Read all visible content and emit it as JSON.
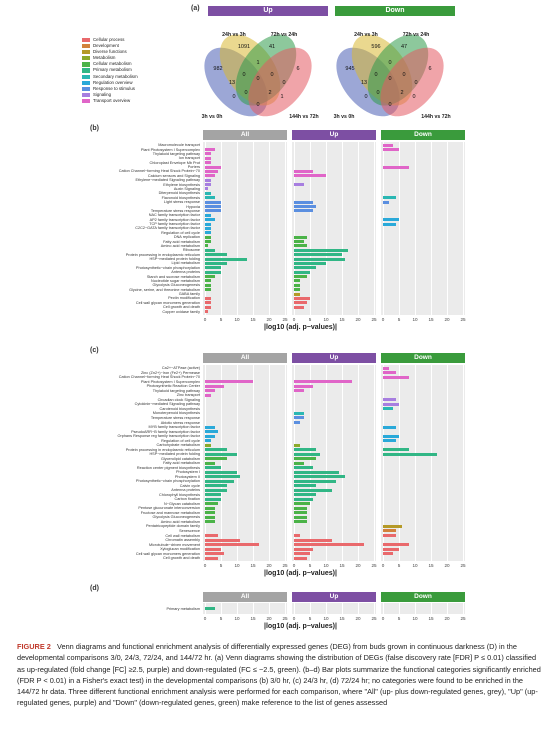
{
  "panels": {
    "a": "(a)",
    "b": "(b)",
    "c": "(c)",
    "d": "(d)"
  },
  "venn": {
    "up": {
      "title": "Up",
      "color": "#7d4fa3",
      "labels": {
        "c24": "24h vs 3h",
        "c72": "72h vs 24h",
        "c3": "3h vs 0h",
        "c144": "144h vs 72h"
      },
      "nums": [
        "1091",
        "41",
        "982",
        "6",
        "13",
        "1",
        "0",
        "0",
        "0",
        "0",
        "0",
        "1",
        "0",
        "2",
        "0"
      ]
    },
    "down": {
      "title": "Down",
      "color": "#3a9b3c",
      "labels": {
        "c24": "24h vs 3h",
        "c72": "72h vs 24h",
        "c3": "3h vs 0h",
        "c144": "144h vs 72h"
      },
      "nums": [
        "596",
        "47",
        "945",
        "6",
        "13",
        "0",
        "0",
        "0",
        "0",
        "0",
        "0",
        "0",
        "0",
        "2",
        "0"
      ]
    }
  },
  "legend": [
    {
      "label": "Cellular process",
      "color": "#e9696c"
    },
    {
      "label": "Development",
      "color": "#d2823c"
    },
    {
      "label": "Diverse functions",
      "color": "#b59a27"
    },
    {
      "label": "Metabolism",
      "color": "#8caa2b"
    },
    {
      "label": "Cellular metabolism",
      "color": "#4bb348"
    },
    {
      "label": "Primary metabolism",
      "color": "#31b685"
    },
    {
      "label": "Secondary metabolism",
      "color": "#2ab7b3"
    },
    {
      "label": "Regulation overview",
      "color": "#2aa9d9"
    },
    {
      "label": "Response to stimulus",
      "color": "#5b8fe0"
    },
    {
      "label": "Signaling",
      "color": "#a77ee0"
    },
    {
      "label": "Transport overview",
      "color": "#e065c8"
    }
  ],
  "facets": {
    "all": "All",
    "up": "Up",
    "down": "Down"
  },
  "facet_colors": {
    "all": "#a4a4a4",
    "up": "#7d4fa3",
    "down": "#3a9b3c"
  },
  "axis": {
    "title": "|log10 (adj. p−values)|",
    "ticks": [
      "0",
      "5",
      "10",
      "15",
      "20",
      "25"
    ]
  },
  "chart_data": [
    {
      "type": "bar",
      "panel": "b",
      "orientation": "horizontal",
      "xlim": [
        0,
        25
      ],
      "categories": [
        "Macromolecule transport",
        "Plant Photosystem I Supercomplex",
        "Thylakoid targeting pathway",
        "Ion transport",
        "Chloroplast Envelope Mb Prot",
        "Porters",
        "Cation Channel−forming Heat Shock Protein−70",
        "Calcium sensors and Signaling",
        "Ethylene−mediated Signaling pathway",
        "Ethylene biosynthesis",
        "Auxin Signaling",
        "Diterpenoid biosynthesis",
        "Flavonoid biosynthesis",
        "Light stress response",
        "Hypoxia",
        "Temperature stress response",
        "NAC family transcription factor",
        "AP2 family transcription factor",
        "TCP family transcription factor",
        "C2C2−GATA family transcription factor",
        "Regulation of cell cycle",
        "DNA replication",
        "Fatty acid metabolism",
        "Amino acid metabolism",
        "Ribosome",
        "Protein processing in endoplasmic reticulum",
        "HSP−mediated protein folding",
        "Lipid metabolism",
        "Photosynthetic−chain phosphorylation",
        "Antenna proteins",
        "Starch and sucrose metabolism",
        "Nucleotide sugar metabolism",
        "Glycolysis Gluconeogenesis",
        "Glycine, serine, and threonine metabolism",
        "GABA family",
        "Pectin modification",
        "Cell wall glycan monomers generation",
        "Cell growth and death",
        "Copper oxidase family"
      ],
      "cat_colors": [
        "#e065c8",
        "#e065c8",
        "#e065c8",
        "#e065c8",
        "#e065c8",
        "#e065c8",
        "#e065c8",
        "#e065c8",
        "#a77ee0",
        "#a77ee0",
        "#a77ee0",
        "#2ab7b3",
        "#2ab7b3",
        "#5b8fe0",
        "#5b8fe0",
        "#5b8fe0",
        "#2aa9d9",
        "#2aa9d9",
        "#2aa9d9",
        "#2aa9d9",
        "#2aa9d9",
        "#4bb348",
        "#4bb348",
        "#4bb348",
        "#31b685",
        "#31b685",
        "#31b685",
        "#31b685",
        "#31b685",
        "#31b685",
        "#4bb348",
        "#4bb348",
        "#4bb348",
        "#4bb348",
        "#b59a27",
        "#e9696c",
        "#e9696c",
        "#e9696c",
        "#e9696c"
      ],
      "series": [
        {
          "name": "All",
          "values": [
            0,
            3,
            2,
            2,
            2,
            5,
            4,
            3,
            2,
            2,
            1,
            2,
            3,
            5,
            5,
            5,
            2,
            3,
            2,
            2,
            2,
            2,
            2,
            1,
            3,
            7,
            13,
            7,
            5,
            5,
            3,
            2,
            2,
            2,
            0,
            2,
            2,
            2,
            1
          ]
        },
        {
          "name": "Up",
          "values": [
            0,
            0,
            0,
            0,
            0,
            0,
            6,
            10,
            0,
            3,
            0,
            0,
            0,
            6,
            7,
            6,
            0,
            0,
            0,
            0,
            0,
            4,
            3,
            4,
            17,
            15,
            16,
            10,
            7,
            5,
            4,
            2,
            2,
            2,
            2,
            5,
            4,
            3,
            0
          ]
        },
        {
          "name": "Down",
          "values": [
            3,
            5,
            0,
            0,
            0,
            8,
            0,
            0,
            0,
            0,
            0,
            0,
            4,
            2,
            0,
            0,
            0,
            5,
            4,
            0,
            0,
            0,
            0,
            0,
            0,
            0,
            0,
            0,
            0,
            0,
            0,
            0,
            0,
            0,
            0,
            0,
            0,
            0,
            0
          ]
        }
      ]
    },
    {
      "type": "bar",
      "panel": "c",
      "orientation": "horizontal",
      "xlim": [
        0,
        25
      ],
      "categories": [
        "Ca2+−ATPase (active)",
        "Zinc (Zn2+)−Iron (Fe2+) Permease",
        "Cation Channel−forming Heat Shock Protein−70",
        "Plant Photosystem I Supercomplex",
        "Photosynthetic Reaction Center",
        "Thylakoid targeting pathway",
        "Zinc transport",
        "Circadian clock Signaling",
        "Cytokinin−mediated Signaling pathway",
        "Carotenoid biosynthesis",
        "Monoterpenoid biosynthesis",
        "Temperature stress response",
        "Abiotic stress response",
        "MYB family transcription factor",
        "PseudoARR−B family transcription factor",
        "Orphans Response reg family transcription factor",
        "Regulation of cell cycle",
        "Carbohydrate metabolism",
        "Protein processing in endoplasmic reticulum",
        "HSP−mediated protein folding",
        "Glycerolipid catabolism",
        "Fatty acid metabolism",
        "Reaction center pigment biosynthesis",
        "Photosystem I",
        "Photosystem II",
        "Photosynthetic−chain phosphorylation",
        "Calvin cycle",
        "Antenna proteins",
        "Chlorophyll biosynthesis",
        "Carbon fixation",
        "N−Glycan catabolism",
        "Pentose glucuronate interconversion",
        "Fructose and mannose metabolism",
        "Glycolysis Gluconeogenesis",
        "Amino acid metabolism",
        "Pentatricopeptide domain family",
        "Senescence",
        "Cell wall metabolism",
        "Chromatin assembly",
        "Microtubule−driven movement",
        "Xyloglucan modification",
        "Cell wall glycan monomers generation",
        "Cell growth and death"
      ],
      "cat_colors": [
        "#e065c8",
        "#e065c8",
        "#e065c8",
        "#e065c8",
        "#e065c8",
        "#e065c8",
        "#e065c8",
        "#a77ee0",
        "#a77ee0",
        "#2ab7b3",
        "#2ab7b3",
        "#5b8fe0",
        "#5b8fe0",
        "#2aa9d9",
        "#2aa9d9",
        "#2aa9d9",
        "#2aa9d9",
        "#8caa2b",
        "#31b685",
        "#31b685",
        "#4bb348",
        "#4bb348",
        "#31b685",
        "#31b685",
        "#31b685",
        "#31b685",
        "#31b685",
        "#31b685",
        "#31b685",
        "#31b685",
        "#4bb348",
        "#4bb348",
        "#4bb348",
        "#4bb348",
        "#4bb348",
        "#b59a27",
        "#d2823c",
        "#e9696c",
        "#e9696c",
        "#e9696c",
        "#e9696c",
        "#e9696c",
        "#e9696c"
      ],
      "series": [
        {
          "name": "All",
          "values": [
            0,
            0,
            0,
            15,
            6,
            3,
            2,
            0,
            0,
            0,
            0,
            0,
            0,
            3,
            4,
            3,
            2,
            2,
            7,
            10,
            7,
            3,
            5,
            10,
            11,
            9,
            7,
            7,
            5,
            5,
            4,
            3,
            3,
            3,
            3,
            0,
            0,
            4,
            11,
            17,
            5,
            6,
            4
          ]
        },
        {
          "name": "Up",
          "values": [
            0,
            0,
            0,
            18,
            6,
            3,
            0,
            0,
            0,
            0,
            3,
            3,
            2,
            0,
            0,
            0,
            0,
            2,
            7,
            8,
            7,
            3,
            6,
            14,
            16,
            13,
            7,
            12,
            7,
            6,
            5,
            4,
            4,
            4,
            4,
            0,
            0,
            2,
            12,
            22,
            6,
            5,
            4
          ]
        },
        {
          "name": "Down",
          "values": [
            2,
            4,
            8,
            0,
            0,
            0,
            0,
            4,
            5,
            3,
            0,
            0,
            0,
            4,
            0,
            5,
            4,
            0,
            8,
            17,
            0,
            0,
            0,
            0,
            0,
            0,
            0,
            0,
            0,
            0,
            0,
            0,
            0,
            0,
            0,
            6,
            4,
            4,
            0,
            8,
            5,
            3,
            0
          ]
        }
      ]
    },
    {
      "type": "bar",
      "panel": "d",
      "orientation": "horizontal",
      "xlim": [
        0,
        25
      ],
      "categories": [
        "Primary metabolism"
      ],
      "cat_colors": [
        "#31b685"
      ],
      "series": [
        {
          "name": "All",
          "values": [
            3
          ]
        },
        {
          "name": "Up",
          "values": [
            0
          ]
        },
        {
          "name": "Down",
          "values": [
            0
          ]
        }
      ]
    }
  ],
  "caption": {
    "lead": "FIGURE 2",
    "text": "Venn diagrams and functional enrichment analysis of differentially expressed genes (DEG) from buds grown in continuous darkness (D) in the developmental comparisons 3/0, 24/3, 72/24, and 144/72 hr. (a) Venn diagrams showing the distribution of DEGs (false discovery rate [FDR] P ≤ 0.01) classified as up-regulated (fold change [FC] ≥2.5, purple) and down-regulated (FC ≤ −2.5, green). (b–d) Bar plots summarize the functional categories significantly enriched (FDR P < 0.01) in a Fisher's exact test) in the developmental comparisons (b) 3/0 hr, (c) 24/3 hr, (d) 72/24 hr; no categories were found to be enriched in the 144/72 hr data. Three different functional enrichment analysis were performed for each comparison, where \"All\" (up- plus down-regulated genes, grey), \"Up\" (up-regulated genes, purple) and \"Down\" (down-regulated genes, green) make reference to the list of genes assessed"
  }
}
